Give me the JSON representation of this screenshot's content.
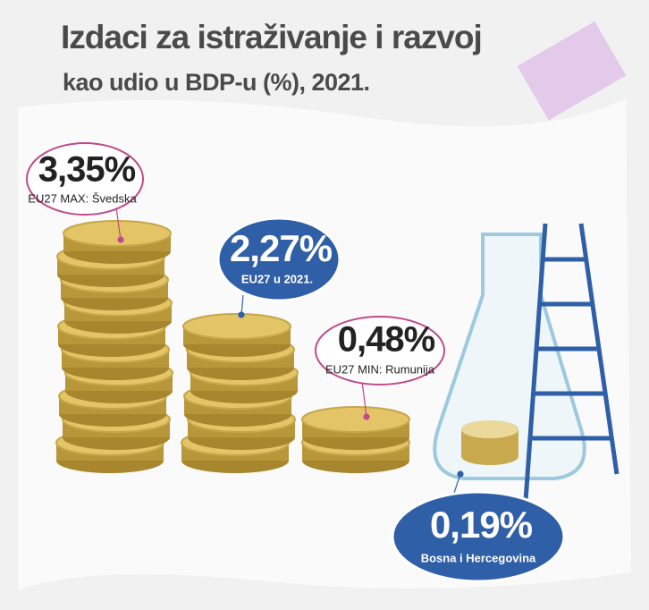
{
  "header": {
    "title": "Izdaci za istraživanje i razvoj",
    "subtitle": "kao udio u BDP-u (%), 2021."
  },
  "callouts": [
    {
      "value": "3,35%",
      "label": "EU27 MAX: Švedska"
    },
    {
      "value": "2,27%",
      "label": "EU27 u 2021."
    },
    {
      "value": "0,48%",
      "label": "EU27 MIN: Rumunija"
    },
    {
      "value": "0,19%",
      "label": "Bosna i Hercegovina"
    }
  ]
}
